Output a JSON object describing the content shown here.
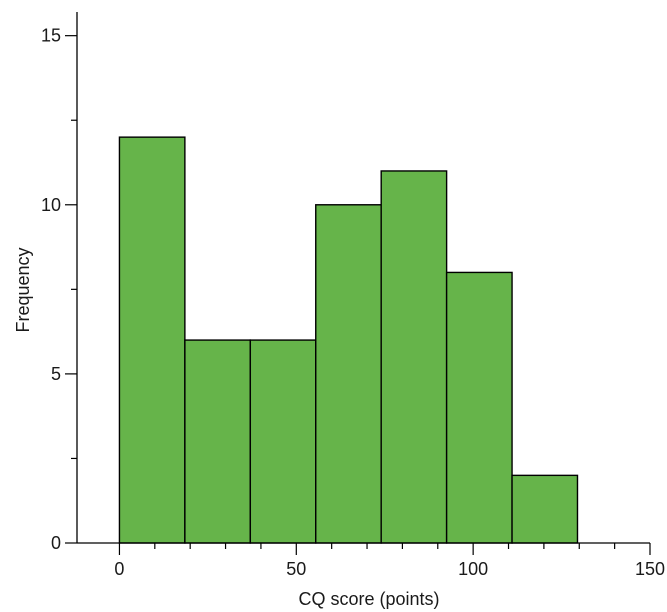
{
  "chart_data": {
    "type": "bar",
    "title": "",
    "xlabel": "CQ score (points)",
    "ylabel": "Frequency",
    "bins": [
      {
        "x0": 0,
        "x1": 18.5,
        "value": 12
      },
      {
        "x0": 18.5,
        "x1": 37,
        "value": 6
      },
      {
        "x0": 37,
        "x1": 55.5,
        "value": 6
      },
      {
        "x0": 55.5,
        "x1": 74,
        "value": 10
      },
      {
        "x0": 74,
        "x1": 92.5,
        "value": 11
      },
      {
        "x0": 92.5,
        "x1": 111,
        "value": 8
      },
      {
        "x0": 111,
        "x1": 129.5,
        "value": 2
      }
    ],
    "xlim": [
      -12,
      150
    ],
    "ylim": [
      0,
      15.7
    ],
    "x_major_ticks": [
      0,
      50,
      100,
      150
    ],
    "x_minor_ticks": [
      10,
      20,
      30,
      40,
      60,
      70,
      80,
      90,
      110,
      120,
      130,
      140
    ],
    "y_major_ticks": [
      0,
      5,
      10,
      15
    ],
    "y_minor_ticks": [
      2.5,
      7.5,
      12.5
    ],
    "x_tick_labels": [
      "0",
      "50",
      "100",
      "150"
    ],
    "y_tick_labels": [
      "0",
      "5",
      "10",
      "15"
    ],
    "grid": false,
    "bar_color": "#66b44a",
    "edge_color": "#000000"
  }
}
